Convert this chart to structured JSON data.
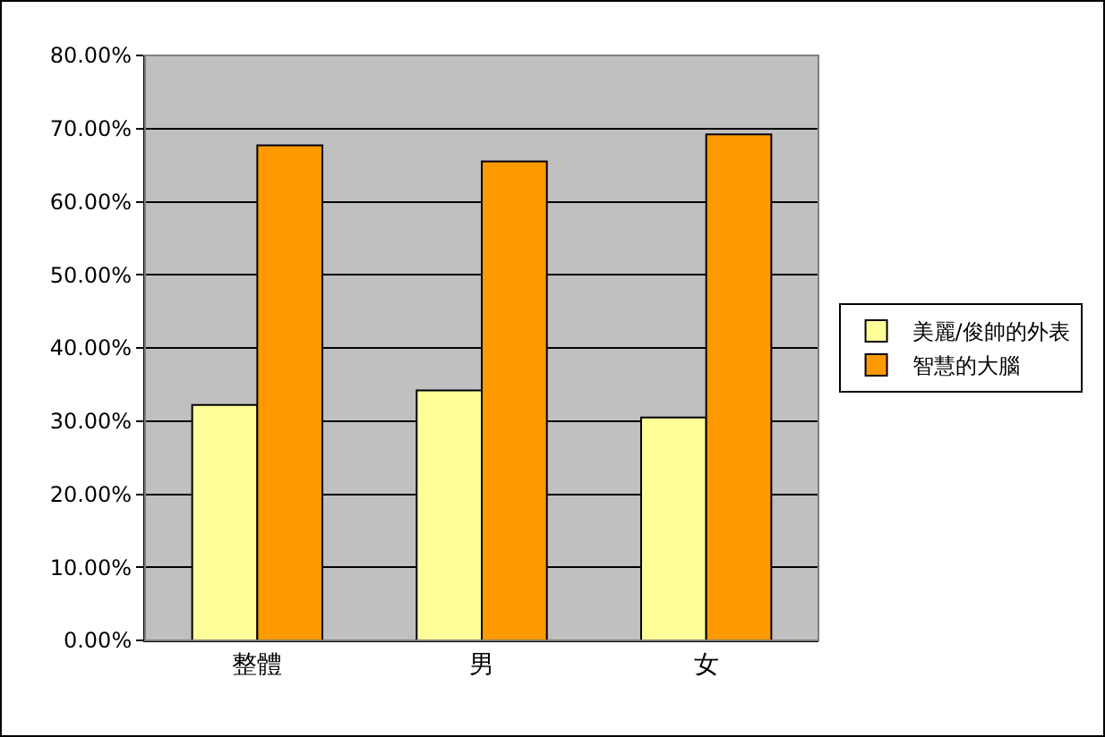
{
  "chart_data": {
    "type": "bar",
    "categories": [
      "整體",
      "男",
      "女"
    ],
    "series": [
      {
        "name": "美麗/俊帥的外表",
        "color": "#ffff99",
        "values": [
          32.2,
          34.2,
          30.5
        ]
      },
      {
        "name": "智慧的大腦",
        "color": "#ff9900",
        "values": [
          67.7,
          65.5,
          69.2
        ]
      }
    ],
    "ylim": [
      0,
      80
    ],
    "yticks": [
      {
        "value": 0,
        "label": "0.00%"
      },
      {
        "value": 10,
        "label": "10.00%"
      },
      {
        "value": 20,
        "label": "20.00%"
      },
      {
        "value": 30,
        "label": "30.00%"
      },
      {
        "value": 40,
        "label": "40.00%"
      },
      {
        "value": 50,
        "label": "50.00%"
      },
      {
        "value": 60,
        "label": "60.00%"
      },
      {
        "value": 70,
        "label": "70.00%"
      },
      {
        "value": 80,
        "label": "80.00%"
      }
    ],
    "grid": "y",
    "legend": "right"
  }
}
